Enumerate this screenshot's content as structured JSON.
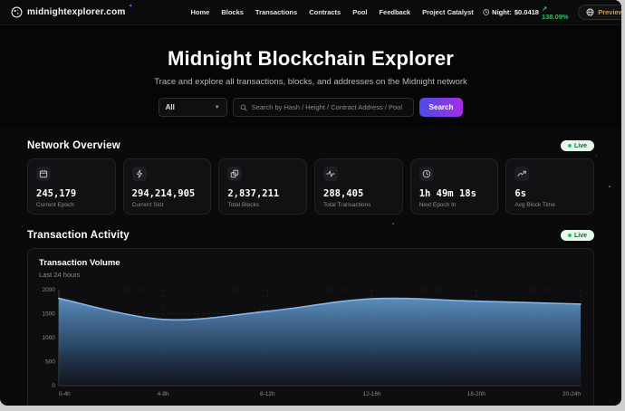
{
  "nav": {
    "brand": "midnightexplorer.com",
    "items": [
      {
        "label": "Home"
      },
      {
        "label": "Blocks"
      },
      {
        "label": "Transactions"
      },
      {
        "label": "Contracts"
      },
      {
        "label": "Pool"
      },
      {
        "label": "Feedback"
      },
      {
        "label": "Project Catalyst"
      }
    ],
    "ticker": {
      "label": "Night:",
      "price": "$0.0418",
      "change": "↗ 138.09%"
    },
    "preview_label": "Preview"
  },
  "hero": {
    "title": "Midnight Blockchain Explorer",
    "subtitle": "Trace and explore all transactions, blocks, and addresses on the Midnight network",
    "search": {
      "filter_value": "All",
      "placeholder": "Search by Hash / Height / Contract Address / Pool",
      "button_label": "Search"
    }
  },
  "network_overview": {
    "title": "Network Overview",
    "live_label": "Live",
    "cards": [
      {
        "icon": "calendar-icon",
        "value": "245,179",
        "label": "Current Epoch"
      },
      {
        "icon": "zap-icon",
        "value": "294,214,905",
        "label": "Current Slot"
      },
      {
        "icon": "blocks-icon",
        "value": "2,837,211",
        "label": "Total Blocks"
      },
      {
        "icon": "activity-icon",
        "value": "288,405",
        "label": "Total Transactions"
      },
      {
        "icon": "clock-icon",
        "value": "1h 49m 18s",
        "label": "Next Epoch In"
      },
      {
        "icon": "trending-up-icon",
        "value": "6s",
        "label": "Avg Block Time"
      }
    ]
  },
  "transaction_activity": {
    "title": "Transaction Activity",
    "live_label": "Live",
    "card_title": "Transaction Volume",
    "card_subtitle": "Last 24 hours"
  },
  "chart_data": {
    "type": "area",
    "title": "Transaction Volume",
    "subtitle": "Last 24 hours",
    "categories": [
      "0-4h",
      "4-8h",
      "8-12h",
      "12-16h",
      "16-20h",
      "20-24h"
    ],
    "values": [
      1820,
      1380,
      1550,
      1810,
      1760,
      1700
    ],
    "xlabel": "",
    "ylabel": "",
    "ylim": [
      0,
      2000
    ],
    "yticks": [
      0,
      500,
      1000,
      1500,
      2000
    ],
    "grid": true,
    "legend": "none",
    "line_color": "#86b7e8",
    "fill_top": "#5e93c6",
    "fill_bottom": "#16233a"
  },
  "colors": {
    "accent_gradient_start": "#4b4be8",
    "accent_gradient_end": "#a52fe3",
    "live_green": "#22c55e",
    "change_green": "#22c55e",
    "preview_amber": "#dd9a33"
  }
}
